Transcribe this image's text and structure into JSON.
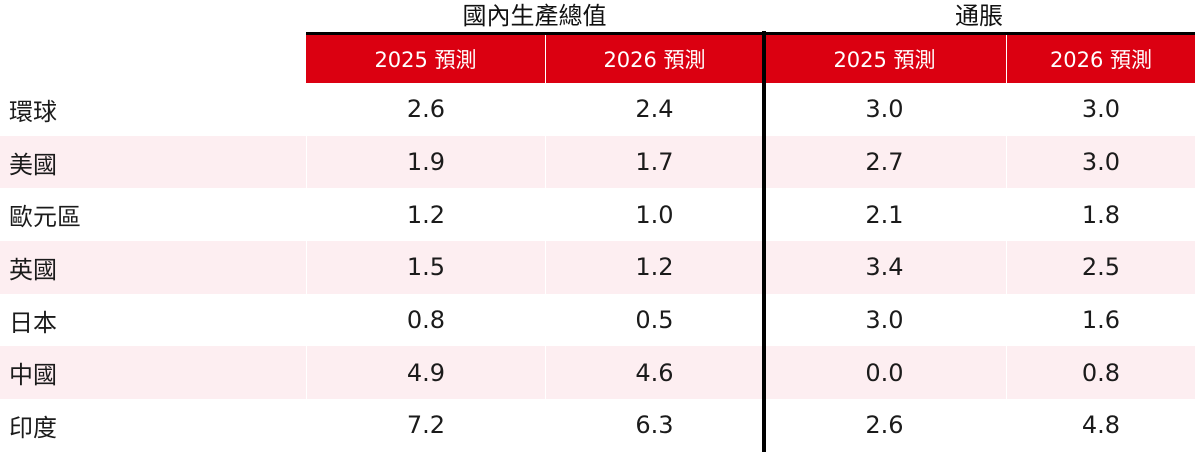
{
  "titles": {
    "gdp": "國內生產總值",
    "inflation": "通脹"
  },
  "headers": [
    "2025 預測",
    "2026 預測",
    "2025 預測",
    "2026 預測"
  ],
  "rows": [
    {
      "label": "環球",
      "values": [
        "2.6",
        "2.4",
        "3.0",
        "3.0"
      ]
    },
    {
      "label": "美國",
      "values": [
        "1.9",
        "1.7",
        "2.7",
        "3.0"
      ]
    },
    {
      "label": "歐元區",
      "values": [
        "1.2",
        "1.0",
        "2.1",
        "1.8"
      ]
    },
    {
      "label": "英國",
      "values": [
        "1.5",
        "1.2",
        "3.4",
        "2.5"
      ]
    },
    {
      "label": "日本",
      "values": [
        "0.8",
        "0.5",
        "3.0",
        "1.6"
      ]
    },
    {
      "label": "中國",
      "values": [
        "4.9",
        "4.6",
        "0.0",
        "0.8"
      ]
    },
    {
      "label": "印度",
      "values": [
        "7.2",
        "6.3",
        "2.6",
        "4.8"
      ]
    }
  ],
  "colors": {
    "header_red": "#db0011",
    "row_stripe_pink": "#fdeef1",
    "divider_black": "#000000",
    "header_text": "#ffffff",
    "body_text": "#1b1b1b"
  },
  "chart_data": {
    "type": "table",
    "column_groups": [
      "國內生產總值",
      "通脹"
    ],
    "columns": [
      "2025 預測",
      "2026 預測",
      "2025 預測",
      "2026 預測"
    ],
    "row_labels": [
      "環球",
      "美國",
      "歐元區",
      "英國",
      "日本",
      "中國",
      "印度"
    ],
    "rows": [
      [
        2.6,
        2.4,
        3.0,
        3.0
      ],
      [
        1.9,
        1.7,
        2.7,
        3.0
      ],
      [
        1.2,
        1.0,
        2.1,
        1.8
      ],
      [
        1.5,
        1.2,
        3.4,
        2.5
      ],
      [
        0.8,
        0.5,
        3.0,
        1.6
      ],
      [
        4.9,
        4.6,
        0.0,
        0.8
      ],
      [
        7.2,
        6.3,
        2.6,
        4.8
      ]
    ],
    "notes": "GDP and inflation forecast table; values are percentages; striped rows: 美國, 英國, 中國; black divider separates GDP columns from inflation columns"
  }
}
